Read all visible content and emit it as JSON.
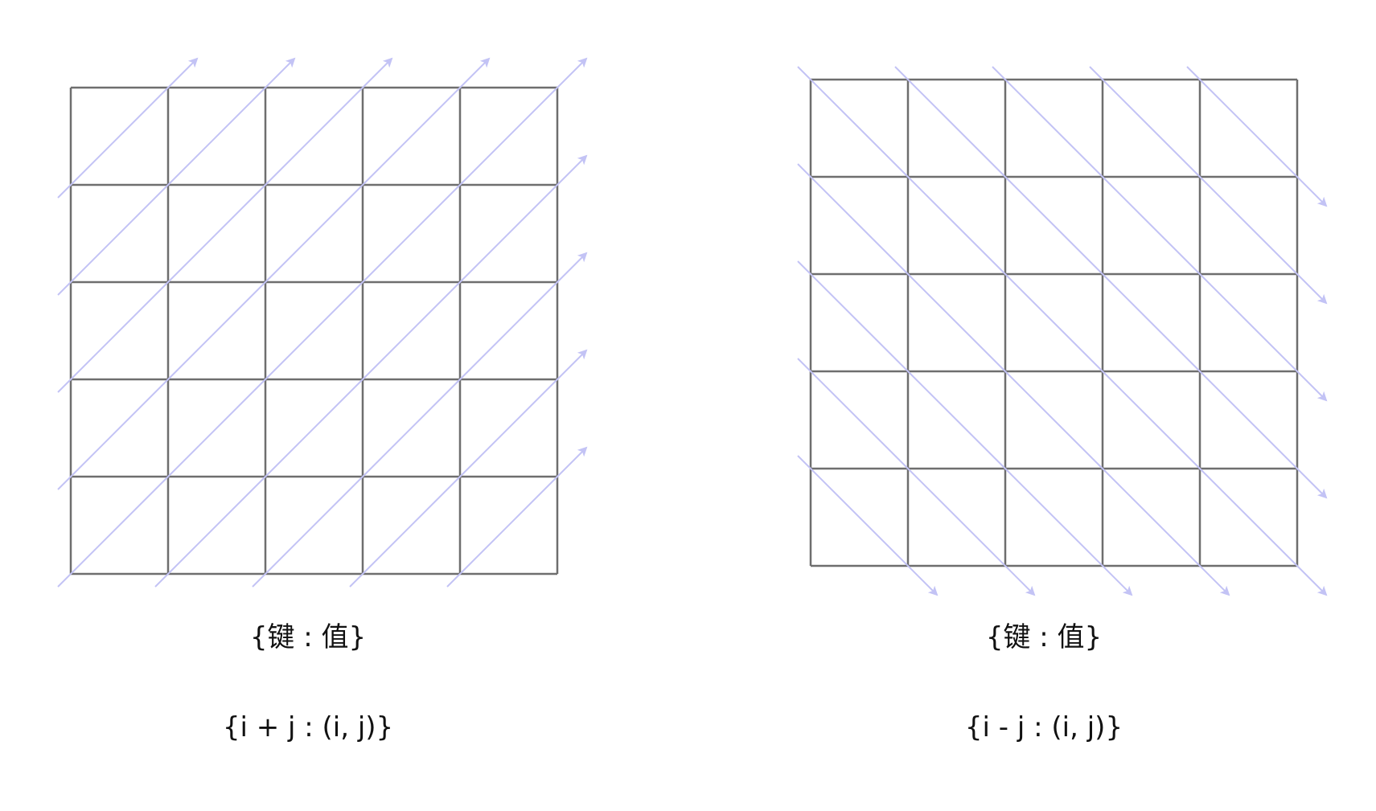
{
  "diagrams": [
    {
      "id": "left",
      "grid_size": 5,
      "diagonal_direction": "anti-diagonal",
      "caption_label": "{键 : 值}",
      "caption_formula": "{i + j : (i, j)}"
    },
    {
      "id": "right",
      "grid_size": 5,
      "diagonal_direction": "main-diagonal",
      "caption_label": "{键 : 值}",
      "caption_formula": "{i - j : (i, j)}"
    }
  ],
  "colors": {
    "grid_line": "#6e6e6e",
    "arrow": "#c3c3f5",
    "text": "#111111"
  }
}
